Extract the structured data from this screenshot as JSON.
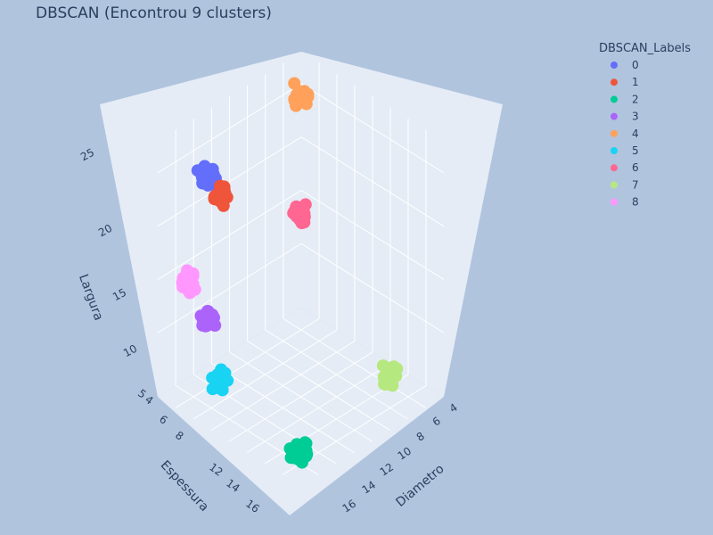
{
  "chart_data": {
    "type": "scatter3d",
    "title": "DBSCAN (Encontrou 9 clusters)",
    "axes": {
      "x": {
        "label": "Diametro",
        "ticks": [
          4,
          6,
          8,
          10,
          12,
          14,
          16
        ]
      },
      "y": {
        "label": "Espessura",
        "ticks": [
          4,
          5,
          6,
          8,
          12,
          14,
          16
        ]
      },
      "z": {
        "label": "Largura",
        "ticks": [
          10,
          15,
          20,
          25
        ]
      }
    },
    "legend": {
      "title": "DBSCAN_Labels",
      "placement": "top-right"
    },
    "series": [
      {
        "name": "0",
        "color": "#636efa",
        "center": {
          "diametro": 5.0,
          "espessura": 15.5,
          "largura": 25.0
        },
        "n": 60
      },
      {
        "name": "1",
        "color": "#ef553b",
        "center": {
          "diametro": 4.5,
          "espessura": 13.5,
          "largura": 22.0
        },
        "n": 35
      },
      {
        "name": "2",
        "color": "#00cc96",
        "center": {
          "diametro": 16.0,
          "espessura": 16.0,
          "largura": 5.0
        },
        "n": 40
      },
      {
        "name": "3",
        "color": "#ab63fa",
        "center": {
          "diametro": 5.5,
          "espessura": 16.0,
          "largura": 12.0
        },
        "n": 25
      },
      {
        "name": "4",
        "color": "#ffa15a",
        "center": {
          "diametro": 5.0,
          "espessura": 5.0,
          "largura": 27.0
        },
        "n": 35
      },
      {
        "name": "5",
        "color": "#19d3f3",
        "center": {
          "diametro": 7.5,
          "espessura": 16.5,
          "largura": 7.5
        },
        "n": 30
      },
      {
        "name": "6",
        "color": "#ff6692",
        "center": {
          "diametro": 9.0,
          "espessura": 9.0,
          "largura": 20.0
        },
        "n": 35
      },
      {
        "name": "7",
        "color": "#b6e880",
        "center": {
          "diametro": 15.0,
          "espessura": 5.0,
          "largura": 6.0
        },
        "n": 35
      },
      {
        "name": "8",
        "color": "#ff97ff",
        "center": {
          "diametro": 4.0,
          "espessura": 16.5,
          "largura": 15.0
        },
        "n": 30
      }
    ]
  }
}
